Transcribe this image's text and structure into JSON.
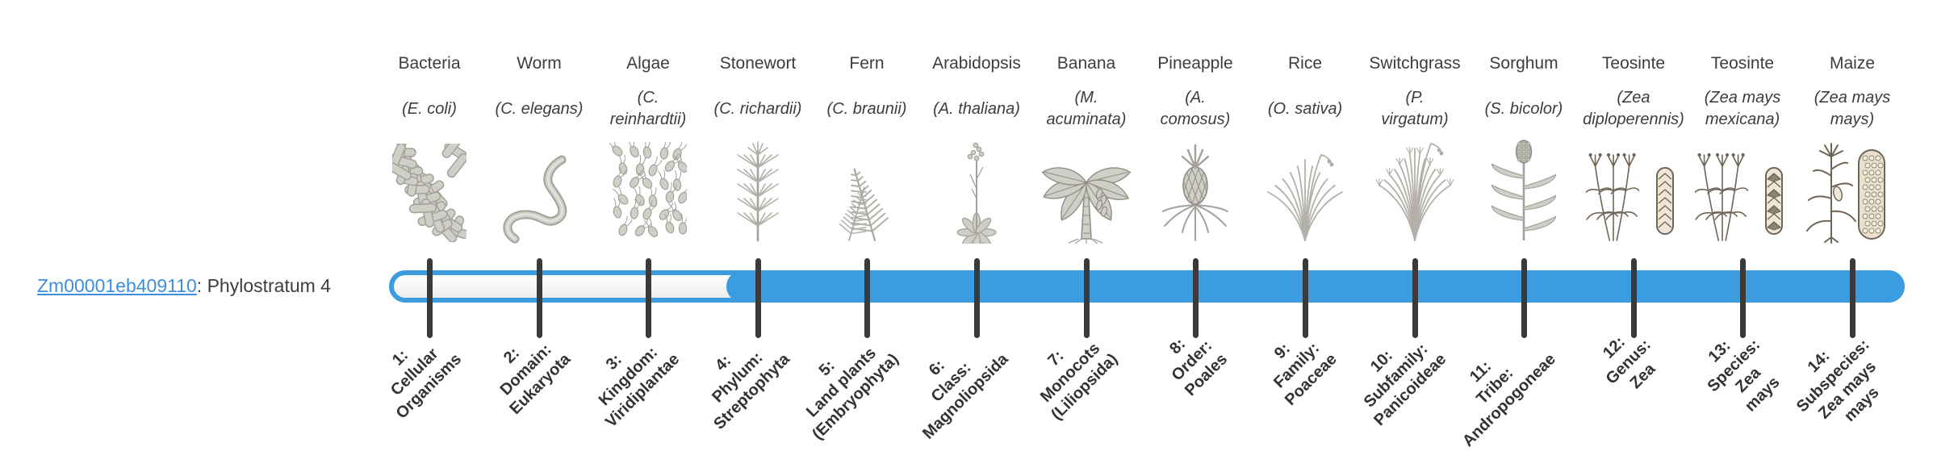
{
  "gene": {
    "id": "Zm00001eb409110",
    "suffix": ": Phylostratum 4",
    "phylostratum": 4
  },
  "track": {
    "n_stages": 14,
    "filled_from_stage": 4,
    "fill_color": "#3b9cdf",
    "tick_color": "#3a3a3a"
  },
  "columns": [
    {
      "name": "Bacteria",
      "sci": "(E. coli)",
      "stage": "1:\nCellular\nOrganisms",
      "icon": "bacteria-icon"
    },
    {
      "name": "Worm",
      "sci": "(C. elegans)",
      "stage": "2:\nDomain:\nEukaryota",
      "icon": "worm-icon"
    },
    {
      "name": "Algae",
      "sci": "(C.\nreinhardtii)",
      "stage": "3:\nKingdom:\nViridiplantae",
      "icon": "algae-icon"
    },
    {
      "name": "Stonewort",
      "sci": "(C. richardii)",
      "stage": "4:\nPhylum:\nStreptophyta",
      "icon": "stonewort-icon"
    },
    {
      "name": "Fern",
      "sci": "(C. braunii)",
      "stage": "5:\nLand plants\n(Embryophyta)",
      "icon": "fern-icon"
    },
    {
      "name": "Arabidopsis",
      "sci": "(A. thaliana)",
      "stage": "6:\nClass:\nMagnoliopsida",
      "icon": "arabidopsis-icon"
    },
    {
      "name": "Banana",
      "sci": "(M.\nacuminata)",
      "stage": "7:\nMonocots\n(Liliopsida)",
      "icon": "banana-icon"
    },
    {
      "name": "Pineapple",
      "sci": "(A.\ncomosus)",
      "stage": "8:\nOrder:\nPoales",
      "icon": "pineapple-icon"
    },
    {
      "name": "Rice",
      "sci": "(O. sativa)",
      "stage": "9:\nFamily:\nPoaceae",
      "icon": "rice-icon"
    },
    {
      "name": "Switchgrass",
      "sci": "(P.\nvirgatum)",
      "stage": "10:\nSubfamily:\nPanicoideae",
      "icon": "switchgrass-icon"
    },
    {
      "name": "Sorghum",
      "sci": "(S. bicolor)",
      "stage": "11:\nTribe:\nAndropogoneae",
      "icon": "sorghum-icon"
    },
    {
      "name": "Teosinte",
      "sci": "(Zea\ndiploperennis)",
      "stage": "12:\nGenus:\nZea",
      "icon": "teosinte-diploperennis-icon"
    },
    {
      "name": "Teosinte",
      "sci": "(Zea mays\nmexicana)",
      "stage": "13:\nSpecies:\nZea\nmays",
      "icon": "teosinte-mexicana-icon"
    },
    {
      "name": "Maize",
      "sci": "(Zea mays\nmays)",
      "stage": "14:\nSubspecies:\nZea mays\nmays",
      "icon": "maize-icon"
    }
  ]
}
